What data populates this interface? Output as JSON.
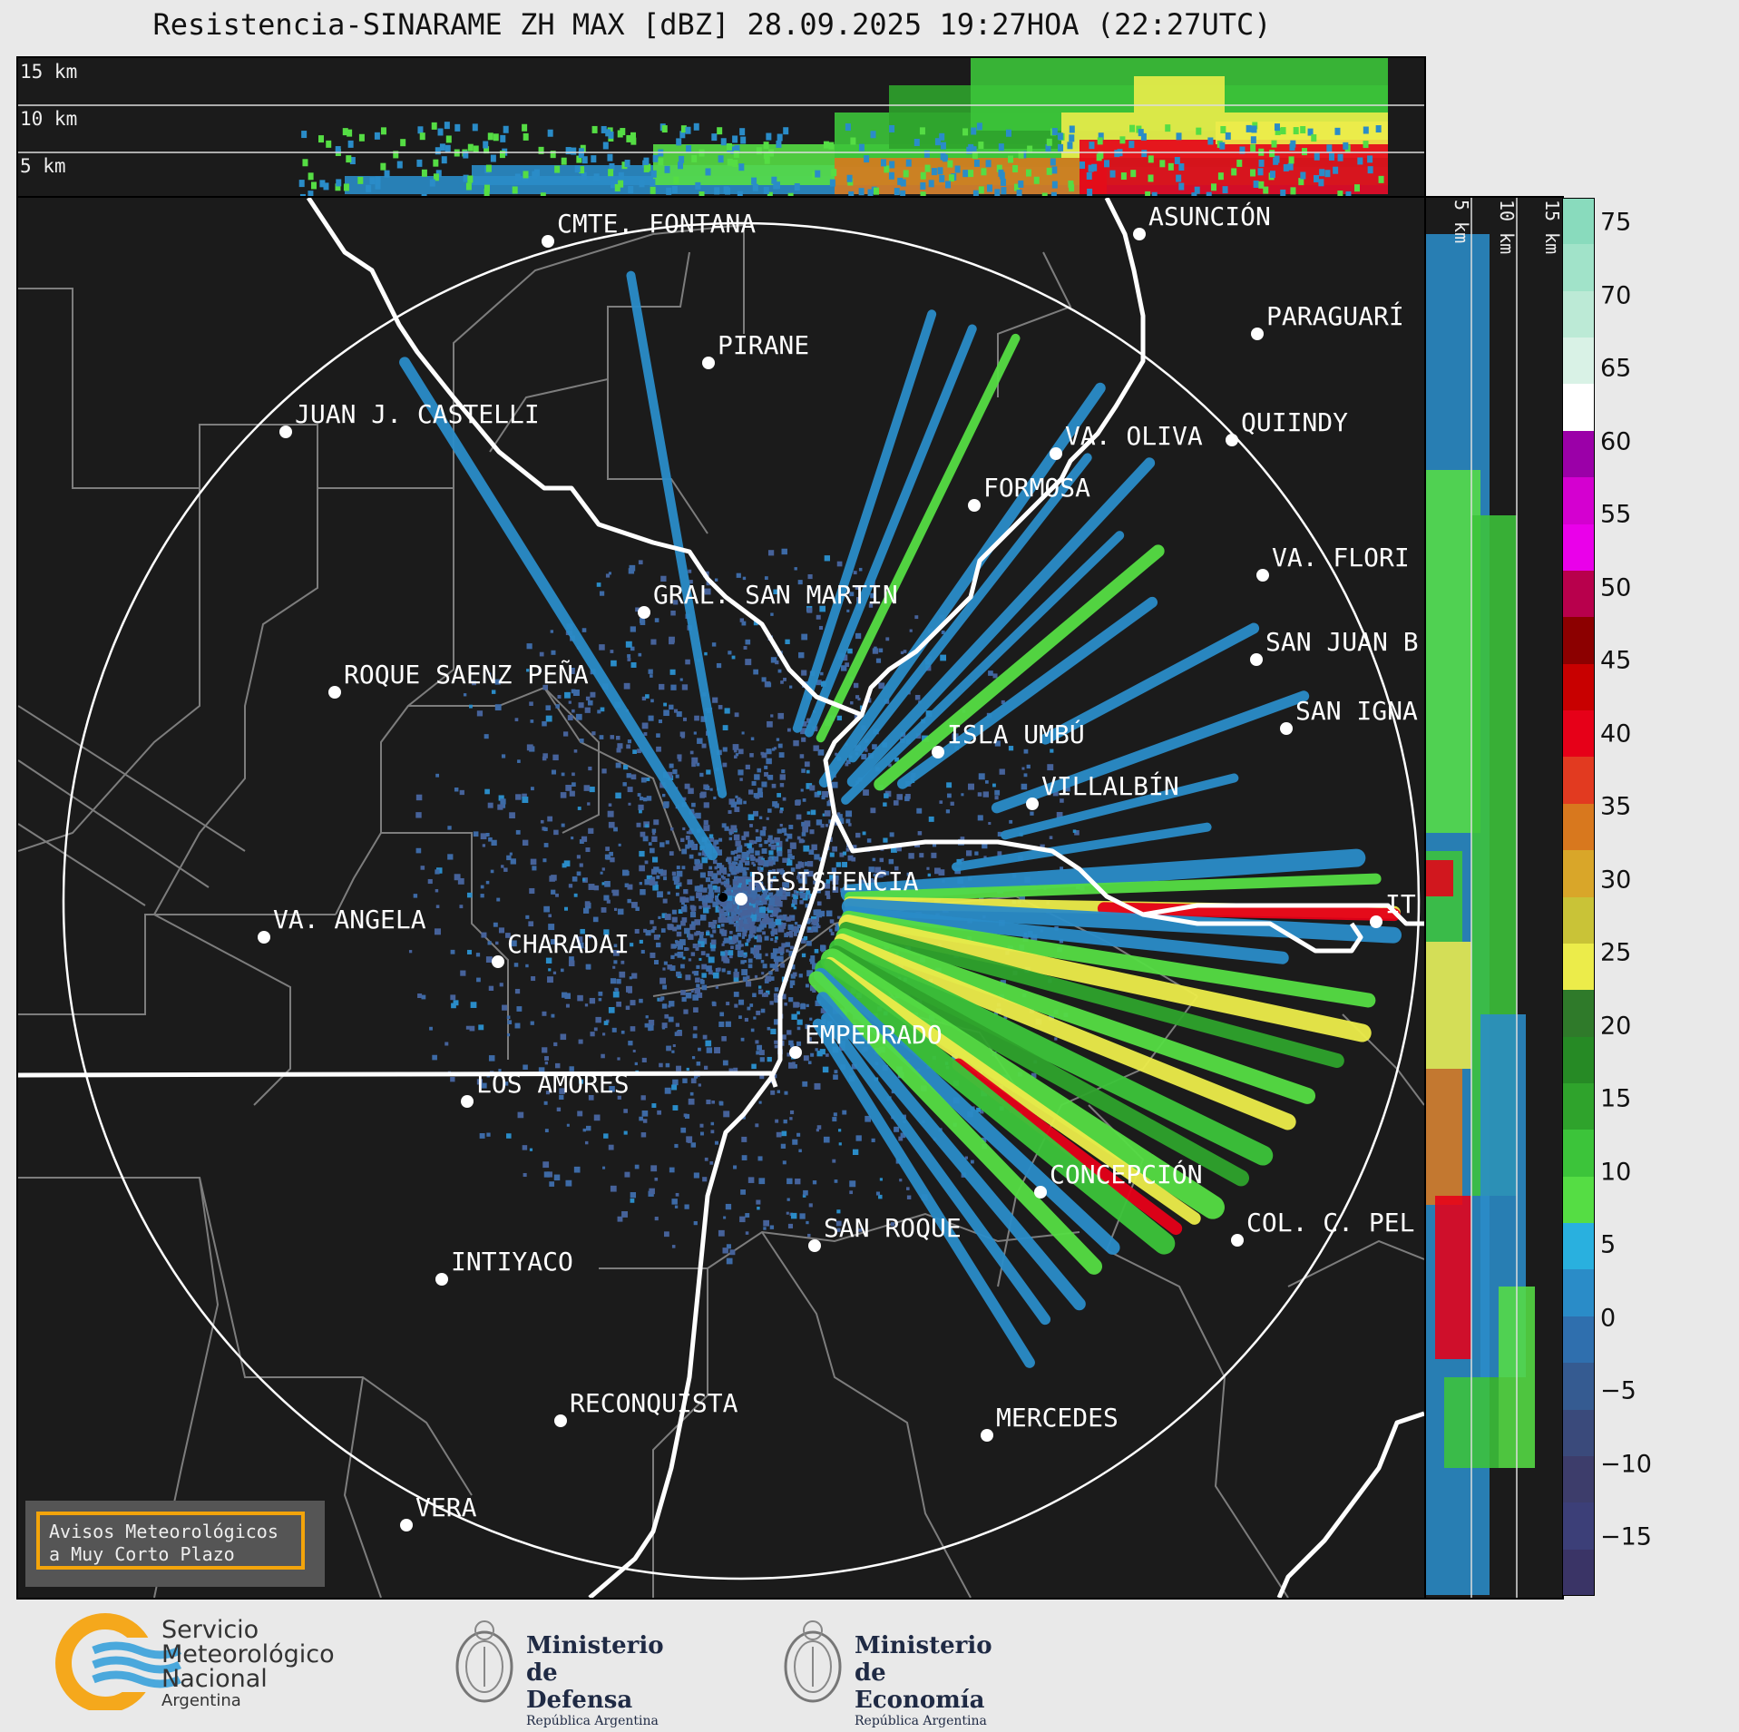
{
  "title": "Resistencia-SINARAME ZH MAX [dBZ] 28.09.2025 19:27HOA (22:27UTC)",
  "height_labels": [
    "15 km",
    "10 km",
    "5 km"
  ],
  "cities": [
    {
      "name": "CMTE. FONTANA"
    },
    {
      "name": "ASUNCIÓN"
    },
    {
      "name": "PIRANE"
    },
    {
      "name": "PARAGUARÍ"
    },
    {
      "name": "JUAN J. CASTELLI"
    },
    {
      "name": "VA. OLIVA"
    },
    {
      "name": "QUIINDY"
    },
    {
      "name": "FORMOSA"
    },
    {
      "name": "VA. FLORI"
    },
    {
      "name": "GRAL. SAN MARTIN"
    },
    {
      "name": "SAN JUAN B"
    },
    {
      "name": "ROQUE SAENZ PEÑA"
    },
    {
      "name": "SAN IGNA"
    },
    {
      "name": "ISLA UMBÚ"
    },
    {
      "name": "VILLALBÍN"
    },
    {
      "name": "RESISTENCIA"
    },
    {
      "name": "VA. ANGELA"
    },
    {
      "name": "CHARADAI"
    },
    {
      "name": "IT"
    },
    {
      "name": "EMPEDRADO"
    },
    {
      "name": "LOS AMORES"
    },
    {
      "name": "CONCEPCIÓN"
    },
    {
      "name": "SAN ROQUE"
    },
    {
      "name": "COL. C. PEL"
    },
    {
      "name": "INTIYACO"
    },
    {
      "name": "RECONQUISTA"
    },
    {
      "name": "MERCEDES"
    },
    {
      "name": "VERA"
    }
  ],
  "warning_box": {
    "line1": "Avisos Meteorológicos",
    "line2": "a Muy Corto Plazo"
  },
  "colorbar": {
    "ticks": [
      "75",
      "70",
      "65",
      "60",
      "55",
      "50",
      "45",
      "40",
      "35",
      "30",
      "25",
      "20",
      "15",
      "10",
      "5",
      "0",
      "−5",
      "−10",
      "−15"
    ],
    "colors": [
      "#89dbbd",
      "#a1e3c9",
      "#bcead6",
      "#d9f2e6",
      "#ffffff",
      "#9b00a8",
      "#d400d0",
      "#ea00ea",
      "#b8004c",
      "#8c0000",
      "#c80000",
      "#e60018",
      "#e23a20",
      "#d8781e",
      "#d9a629",
      "#c9c337",
      "#ecec4a",
      "#2f7a2a",
      "#268a25",
      "#2fa32c",
      "#3cc43a",
      "#55dd44",
      "#29b0df",
      "#2a8cc8",
      "#2f6fae",
      "#355b91",
      "#3a4a7b",
      "#3d3d6b",
      "#3c3f78",
      "#3a3466"
    ],
    "colors_are_bands_top_to_bottom": true
  },
  "logos": {
    "smn": {
      "line1": "Servicio",
      "line2": "Meteorológico",
      "line3": "Nacional",
      "line4": "Argentina"
    },
    "defensa": {
      "line1": "Ministerio",
      "line2": "de Defensa",
      "line3": "República Argentina"
    },
    "economia": {
      "line1": "Ministerio",
      "line2": "de Economía",
      "line3": "República Argentina"
    }
  }
}
